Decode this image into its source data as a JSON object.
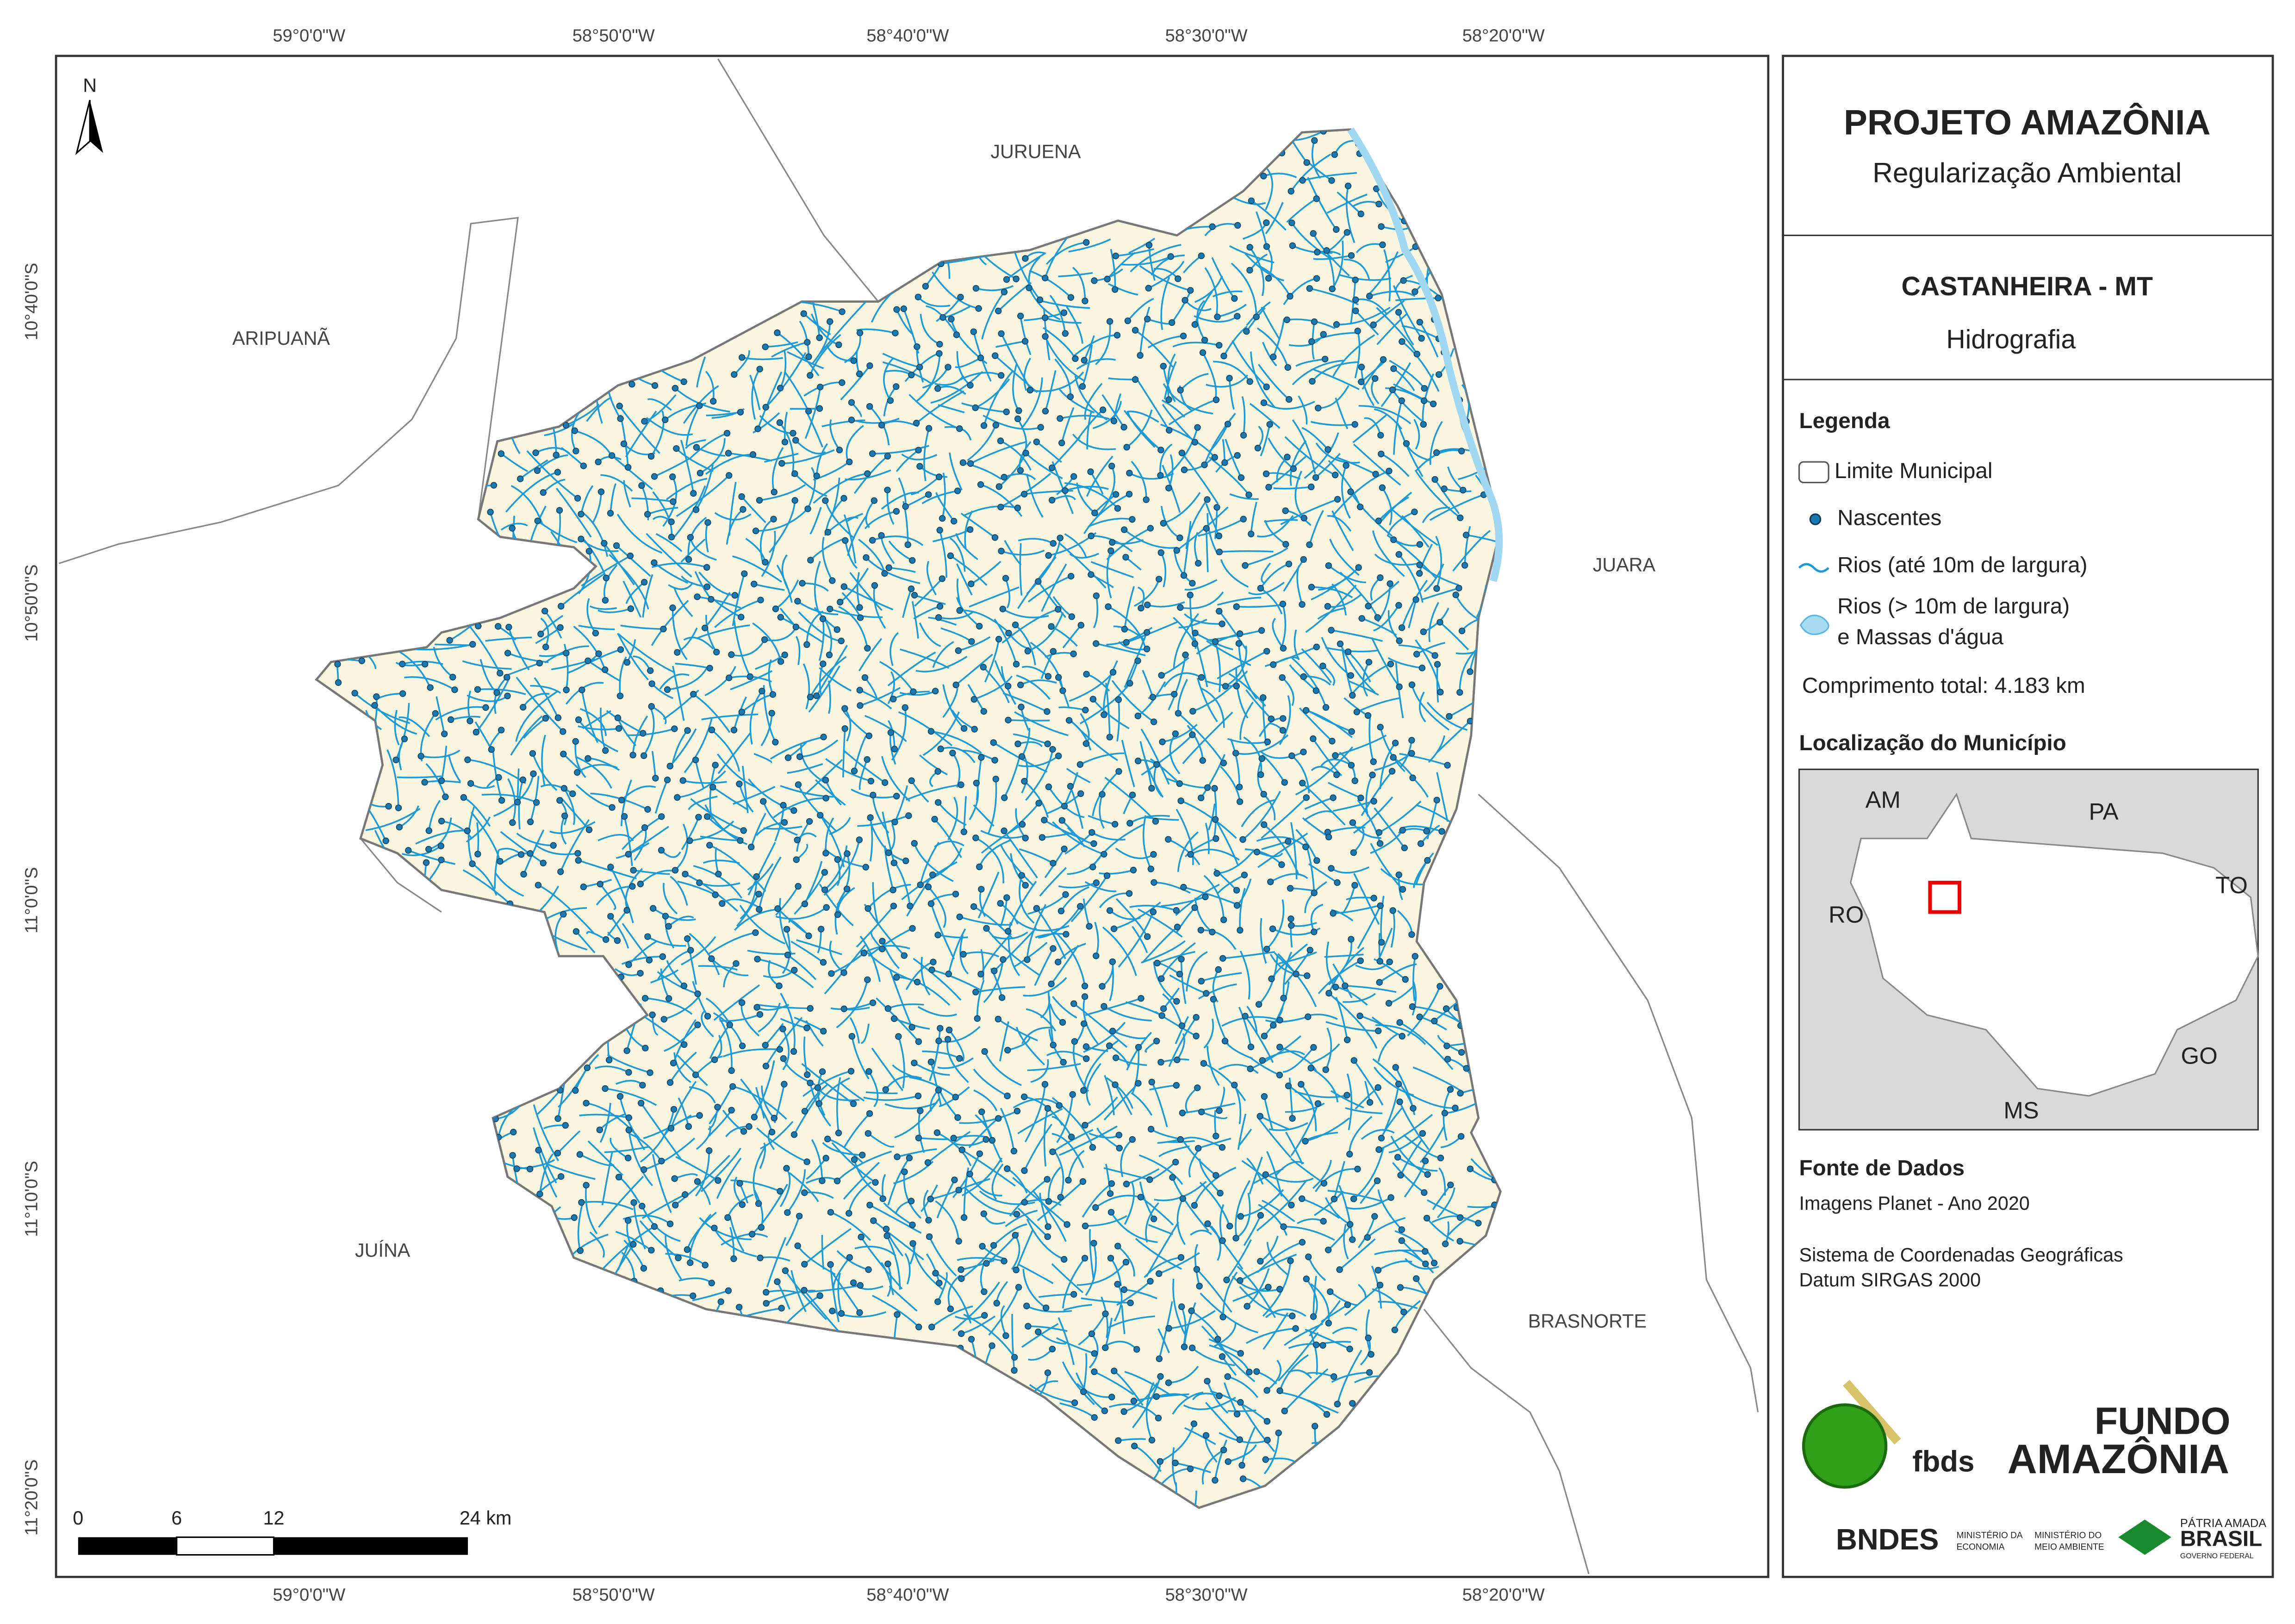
{
  "map": {
    "longitude_labels": [
      "59°0'0\"W",
      "58°50'0\"W",
      "58°40'0\"W",
      "58°30'0\"W",
      "58°20'0\"W"
    ],
    "latitude_labels": [
      "10°40'0\"S",
      "10°50'0\"S",
      "11°0'0\"S",
      "11°10'0\"S",
      "11°20'0\"S"
    ],
    "north": "N",
    "neighbors": [
      "JURUENA",
      "ARIPUANÃ",
      "JUARA",
      "JUÍNA",
      "BRASNORTE"
    ],
    "scale_labels": [
      "0",
      "6",
      "12",
      "24 km"
    ]
  },
  "panel": {
    "title": "PROJETO AMAZÔNIA",
    "subtitle": "Regularização Ambiental",
    "municipality": "CASTANHEIRA - MT",
    "theme": "Hidrografia",
    "legend_title": "Legenda",
    "legend": [
      "Limite Municipal",
      "Nascentes",
      "Rios (até 10m de largura)",
      "Rios (> 10m de largura)",
      "e Massas d'água"
    ],
    "total_length": "Comprimento total: 4.183 km",
    "location_title": "Localização do Município",
    "states": [
      "AM",
      "PA",
      "RO",
      "TO",
      "GO",
      "MS"
    ],
    "sources_title": "Fonte de Dados",
    "sources": [
      "Imagens Planet - Ano 2020",
      "Sistema de Coordenadas Geográficas",
      "Datum SIRGAS 2000"
    ],
    "logos": [
      "fbds",
      "FUNDO",
      "AMAZÔNIA",
      "BNDES",
      "MINISTÉRIO DA",
      "ECONOMIA",
      "MINISTÉRIO DO",
      "MEIO AMBIENTE",
      "PÁTRIA AMADA",
      "BRASIL",
      "GOVERNO FEDERAL"
    ]
  }
}
